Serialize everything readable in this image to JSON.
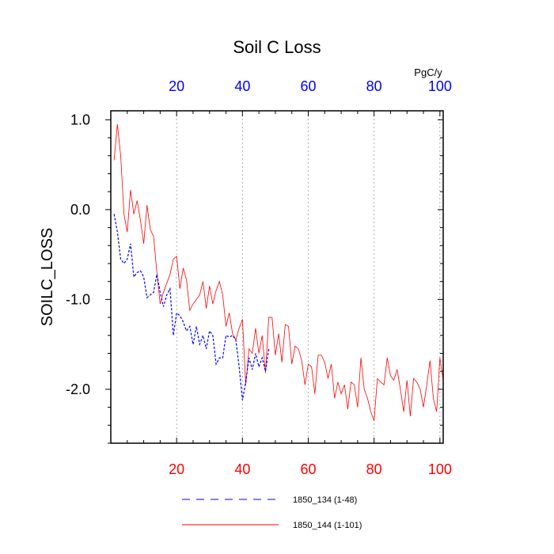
{
  "chart_data": {
    "type": "line",
    "title": "Soil C Loss",
    "ylabel": "SOILC_LOSS",
    "top_axis_unit": "PgC/y",
    "xlim": [
      0,
      101
    ],
    "ylim": [
      -2.6,
      1.1
    ],
    "x_ticks": [
      20,
      40,
      60,
      80,
      100
    ],
    "x_tick_labels": [
      "20",
      "40",
      "60",
      "80",
      "100"
    ],
    "y_ticks": [
      1.0,
      0.0,
      -1.0,
      -2.0
    ],
    "y_tick_labels": [
      "1.0",
      "0.0",
      "-1.0",
      "-2.0"
    ],
    "grid": "dotted vertical lines at x ticks",
    "legend_position": "bottom",
    "colors": {
      "bottom_axis_labels": "#ff0000",
      "top_axis_labels": "#0000ff",
      "axis": "#000000"
    },
    "series": [
      {
        "name": "1850_134 (1-48)",
        "color": "#0000ff",
        "style": "dashed",
        "x": [
          1,
          2,
          3,
          4,
          5,
          6,
          7,
          8,
          9,
          10,
          11,
          12,
          13,
          14,
          15,
          16,
          17,
          18,
          19,
          20,
          21,
          22,
          23,
          24,
          25,
          26,
          27,
          28,
          29,
          30,
          31,
          32,
          33,
          34,
          35,
          36,
          37,
          38,
          39,
          40,
          41,
          42,
          43,
          44,
          45,
          46,
          47,
          48
        ],
        "values": [
          -0.05,
          -0.25,
          -0.55,
          -0.6,
          -0.55,
          -0.38,
          -0.75,
          -0.7,
          -0.68,
          -0.75,
          -0.98,
          -0.95,
          -0.92,
          -0.72,
          -0.92,
          -1.08,
          -0.95,
          -0.88,
          -1.4,
          -1.15,
          -1.18,
          -1.25,
          -1.35,
          -1.3,
          -1.5,
          -1.3,
          -1.5,
          -1.4,
          -1.55,
          -1.35,
          -1.4,
          -1.72,
          -1.65,
          -1.65,
          -1.4,
          -1.42,
          -1.4,
          -1.45,
          -1.75,
          -2.12,
          -1.92,
          -1.65,
          -1.78,
          -1.6,
          -1.75,
          -1.65,
          -1.8,
          -1.55
        ]
      },
      {
        "name": "1850_144 (1-101)",
        "color": "#ff0000",
        "style": "solid",
        "x": [
          1,
          2,
          3,
          4,
          5,
          6,
          7,
          8,
          9,
          10,
          11,
          12,
          13,
          14,
          15,
          16,
          17,
          18,
          19,
          20,
          21,
          22,
          23,
          24,
          25,
          26,
          27,
          28,
          29,
          30,
          31,
          32,
          33,
          34,
          35,
          36,
          37,
          38,
          39,
          40,
          41,
          42,
          43,
          44,
          45,
          46,
          47,
          48,
          49,
          50,
          51,
          52,
          53,
          54,
          55,
          56,
          57,
          58,
          59,
          60,
          61,
          62,
          63,
          64,
          65,
          66,
          67,
          68,
          69,
          70,
          71,
          72,
          73,
          74,
          75,
          76,
          77,
          78,
          79,
          80,
          81,
          82,
          83,
          84,
          85,
          86,
          87,
          88,
          89,
          90,
          91,
          92,
          93,
          94,
          95,
          96,
          97,
          98,
          99,
          100,
          101
        ],
        "values": [
          0.55,
          0.95,
          0.6,
          -0.05,
          -0.25,
          0.22,
          -0.05,
          0.1,
          -0.12,
          -0.38,
          0.05,
          -0.22,
          -0.3,
          -0.7,
          -1.05,
          -0.92,
          -0.82,
          -0.72,
          -0.55,
          -0.52,
          -0.88,
          -0.65,
          -0.78,
          -1.12,
          -1.05,
          -1.0,
          -0.95,
          -0.8,
          -1.1,
          -0.85,
          -1.05,
          -0.9,
          -0.8,
          -0.95,
          -1.3,
          -1.15,
          -1.38,
          -1.45,
          -1.32,
          -1.22,
          -1.95,
          -1.55,
          -1.6,
          -1.32,
          -1.6,
          -1.4,
          -1.82,
          -1.2,
          -1.2,
          -1.62,
          -1.38,
          -1.7,
          -1.28,
          -1.3,
          -1.72,
          -1.52,
          -1.55,
          -1.68,
          -1.95,
          -1.72,
          -1.75,
          -2.05,
          -1.62,
          -1.62,
          -1.7,
          -1.88,
          -1.72,
          -2.1,
          -1.92,
          -2.05,
          -1.95,
          -2.22,
          -1.92,
          -1.95,
          -2.2,
          -1.65,
          -2.0,
          -2.1,
          -2.25,
          -2.35,
          -1.88,
          -1.92,
          -1.95,
          -1.65,
          -1.85,
          -1.9,
          -1.78,
          -2.0,
          -2.25,
          -1.9,
          -2.3,
          -1.88,
          -1.92,
          -2.0,
          -2.2,
          -1.95,
          -1.68,
          -2.1,
          -2.25,
          -1.65,
          -1.9
        ]
      }
    ]
  }
}
